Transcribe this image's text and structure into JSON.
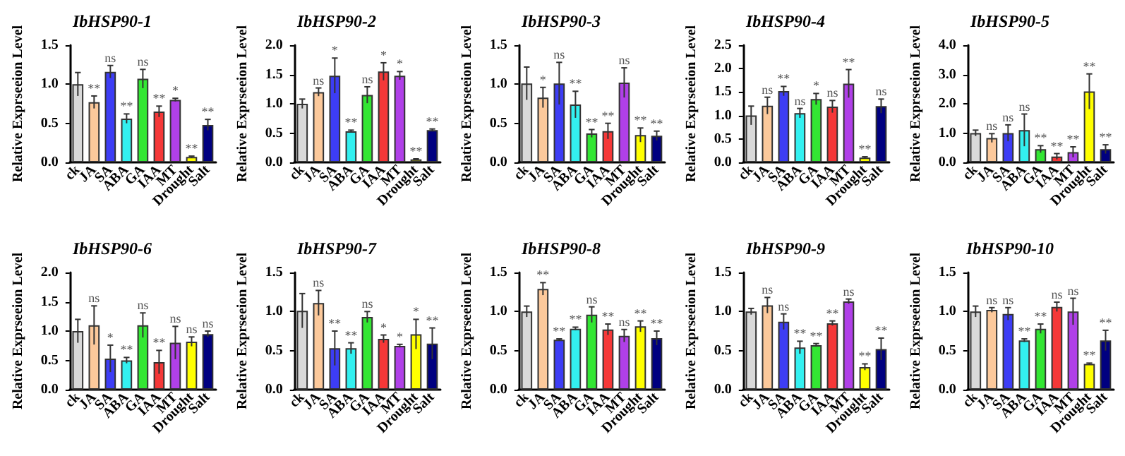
{
  "chart_data": [
    {
      "type": "bar",
      "title": "IbHSP90-1",
      "ylabel": "Relative Exprseeion Level",
      "categories": [
        "ck",
        "JA",
        "SA",
        "ABA",
        "GA",
        "IAA",
        "MT",
        "Drought",
        "Salt"
      ],
      "colors": [
        "#d9d9d9",
        "#fcc99b",
        "#3d3df5",
        "#33f0f0",
        "#33e633",
        "#f53838",
        "#b040e8",
        "#ffff00",
        "#000080"
      ],
      "values": [
        1.0,
        0.77,
        1.16,
        0.56,
        1.07,
        0.65,
        0.8,
        0.07,
        0.48
      ],
      "errors": [
        0.15,
        0.08,
        0.08,
        0.06,
        0.12,
        0.07,
        0.02,
        0.01,
        0.07
      ],
      "value_labels": [
        null,
        "**",
        "ns",
        "**",
        "ns",
        "**",
        "*",
        "**",
        "**"
      ],
      "ylim": [
        0,
        1.5
      ],
      "yticks": [
        {
          "value": 0,
          "label": "0.0"
        },
        0.5,
        {
          "value": 1,
          "label": "1.0"
        },
        1.5
      ]
    },
    {
      "type": "bar",
      "title": "IbHSP90-2",
      "ylabel": "Relative Exprseeion Level",
      "categories": [
        "ck",
        "JA",
        "SA",
        "ABA",
        "GA",
        "IAA",
        "MT",
        "Drought",
        "Salt"
      ],
      "colors": [
        "#d9d9d9",
        "#fcc99b",
        "#3d3df5",
        "#33f0f0",
        "#33e633",
        "#f53838",
        "#b040e8",
        "#ffff00",
        "#000080"
      ],
      "values": [
        1.0,
        1.2,
        1.48,
        0.53,
        1.15,
        1.55,
        1.48,
        0.05,
        0.55
      ],
      "errors": [
        0.08,
        0.07,
        0.3,
        0.02,
        0.14,
        0.15,
        0.07,
        0.01,
        0.02
      ],
      "value_labels": [
        null,
        "ns",
        "*",
        "**",
        "ns",
        "*",
        "*",
        "**",
        "**"
      ],
      "ylim": [
        0,
        2
      ],
      "yticks": [
        {
          "value": 0,
          "label": "0.0"
        },
        0.5,
        {
          "value": 1,
          "label": "1.0"
        },
        1.5,
        {
          "value": 2,
          "label": "2.0"
        }
      ]
    },
    {
      "type": "bar",
      "title": "IbHSP90-3",
      "ylabel": "Relative Exprseeion Level",
      "categories": [
        "ck",
        "JA",
        "SA",
        "ABA",
        "GA",
        "IAA",
        "MT",
        "Drought",
        "Salt"
      ],
      "colors": [
        "#d9d9d9",
        "#fcc99b",
        "#3d3df5",
        "#33f0f0",
        "#33e633",
        "#f53838",
        "#b040e8",
        "#ffff00",
        "#000080"
      ],
      "values": [
        1.01,
        0.83,
        1.01,
        0.74,
        0.37,
        0.4,
        1.02,
        0.35,
        0.34
      ],
      "errors": [
        0.21,
        0.13,
        0.27,
        0.17,
        0.05,
        0.1,
        0.19,
        0.09,
        0.06
      ],
      "value_labels": [
        null,
        "*",
        "ns",
        "**",
        "**",
        "**",
        "ns",
        "**",
        "**"
      ],
      "ylim": [
        0,
        1.5
      ],
      "yticks": [
        {
          "value": 0,
          "label": "0.0"
        },
        0.5,
        {
          "value": 1,
          "label": "1.0"
        },
        1.5
      ]
    },
    {
      "type": "bar",
      "title": "IbHSP90-4",
      "ylabel": "Relative Exprseeion Level",
      "categories": [
        "ck",
        "JA",
        "SA",
        "ABA",
        "GA",
        "IAA",
        "MT",
        "Drought",
        "Salt"
      ],
      "colors": [
        "#d9d9d9",
        "#fcc99b",
        "#3d3df5",
        "#33f0f0",
        "#33e633",
        "#f53838",
        "#b040e8",
        "#ffff00",
        "#000080"
      ],
      "values": [
        1.0,
        1.21,
        1.52,
        1.05,
        1.35,
        1.19,
        1.68,
        0.1,
        1.2
      ],
      "errors": [
        0.2,
        0.18,
        0.1,
        0.1,
        0.12,
        0.13,
        0.3,
        0.02,
        0.15
      ],
      "value_labels": [
        null,
        "ns",
        "**",
        "ns",
        "*",
        "ns",
        "**",
        "**",
        "ns"
      ],
      "ylim": [
        0,
        2.5
      ],
      "yticks": [
        {
          "value": 0,
          "label": "0.0"
        },
        0.5,
        {
          "value": 1,
          "label": "1.0"
        },
        1.5,
        {
          "value": 2,
          "label": "2.0"
        },
        2.5
      ]
    },
    {
      "type": "bar",
      "title": "IbHSP90-5",
      "ylabel": "Relative Exprseeion Level",
      "categories": [
        "ck",
        "JA",
        "SA",
        "ABA",
        "GA",
        "IAA",
        "MT",
        "Drought",
        "Salt"
      ],
      "colors": [
        "#d9d9d9",
        "#fcc99b",
        "#3d3df5",
        "#33f0f0",
        "#33e633",
        "#f53838",
        "#b040e8",
        "#ffff00",
        "#000080"
      ],
      "values": [
        1.0,
        0.83,
        1.0,
        1.1,
        0.45,
        0.2,
        0.35,
        2.42,
        0.45
      ],
      "errors": [
        0.1,
        0.15,
        0.28,
        0.55,
        0.12,
        0.1,
        0.18,
        0.6,
        0.15
      ],
      "value_labels": [
        null,
        "ns",
        "ns",
        "ns",
        "**",
        "**",
        "**",
        "**",
        "**"
      ],
      "ylim": [
        0,
        4
      ],
      "yticks": [
        {
          "value": 0,
          "label": "0.0"
        },
        {
          "value": 1,
          "label": "1.0"
        },
        {
          "value": 2,
          "label": "2.0"
        },
        {
          "value": 3,
          "label": "3.0"
        },
        {
          "value": 4,
          "label": "4.0"
        }
      ]
    },
    {
      "type": "bar",
      "title": "IbHSP90-6",
      "ylabel": "Relative Exprseeion Level",
      "categories": [
        "ck",
        "JA",
        "SA",
        "ABA",
        "GA",
        "IAA",
        "MT",
        "Drought",
        "Salt"
      ],
      "colors": [
        "#d9d9d9",
        "#fcc99b",
        "#3d3df5",
        "#33f0f0",
        "#33e633",
        "#f53838",
        "#b040e8",
        "#ffff00",
        "#000080"
      ],
      "values": [
        1.0,
        1.1,
        0.53,
        0.5,
        1.1,
        0.47,
        0.8,
        0.82,
        0.95
      ],
      "errors": [
        0.2,
        0.33,
        0.23,
        0.05,
        0.21,
        0.2,
        0.28,
        0.08,
        0.05
      ],
      "value_labels": [
        null,
        "ns",
        "*",
        "**",
        "ns",
        "**",
        "ns",
        "ns",
        "ns"
      ],
      "ylim": [
        0,
        2
      ],
      "yticks": [
        {
          "value": 0,
          "label": "0.0"
        },
        0.5,
        {
          "value": 1,
          "label": "1.0"
        },
        1.5,
        {
          "value": 2,
          "label": "2.0"
        }
      ]
    },
    {
      "type": "bar",
      "title": "IbHSP90-7",
      "ylabel": "Relative Exprseeion Level",
      "categories": [
        "ck",
        "JA",
        "SA",
        "ABA",
        "GA",
        "IAA",
        "MT",
        "Drought",
        "Salt"
      ],
      "colors": [
        "#d9d9d9",
        "#fcc99b",
        "#3d3df5",
        "#33f0f0",
        "#33e633",
        "#f53838",
        "#b040e8",
        "#ffff00",
        "#000080"
      ],
      "values": [
        1.01,
        1.11,
        0.53,
        0.53,
        0.93,
        0.65,
        0.56,
        0.71,
        0.59
      ],
      "errors": [
        0.22,
        0.16,
        0.22,
        0.07,
        0.07,
        0.05,
        0.02,
        0.19,
        0.2
      ],
      "value_labels": [
        null,
        "ns",
        "**",
        "**",
        "ns",
        "*",
        "*",
        "*",
        "**"
      ],
      "ylim": [
        0,
        1.5
      ],
      "yticks": [
        {
          "value": 0,
          "label": "0.0"
        },
        0.5,
        {
          "value": 1,
          "label": "1.0"
        },
        1.5
      ]
    },
    {
      "type": "bar",
      "title": "IbHSP90-8",
      "ylabel": "Relative Exprseeion Level",
      "categories": [
        "ck",
        "JA",
        "SA",
        "ABA",
        "GA",
        "IAA",
        "MT",
        "Drought",
        "Salt"
      ],
      "colors": [
        "#d9d9d9",
        "#fcc99b",
        "#3d3df5",
        "#33f0f0",
        "#33e633",
        "#f53838",
        "#b040e8",
        "#ffff00",
        "#000080"
      ],
      "values": [
        1.0,
        1.29,
        0.64,
        0.78,
        0.96,
        0.77,
        0.69,
        0.81,
        0.66
      ],
      "errors": [
        0.07,
        0.08,
        0.01,
        0.02,
        0.1,
        0.07,
        0.08,
        0.07,
        0.09
      ],
      "value_labels": [
        null,
        "**",
        "**",
        "**",
        "ns",
        "**",
        "ns",
        "**",
        "**"
      ],
      "ylim": [
        0,
        1.5
      ],
      "yticks": [
        {
          "value": 0,
          "label": "0.0"
        },
        0.5,
        {
          "value": 1,
          "label": "1.0"
        },
        1.5
      ]
    },
    {
      "type": "bar",
      "title": "IbHSP90-9",
      "ylabel": "Relative Exprseeion Level",
      "categories": [
        "ck",
        "JA",
        "SA",
        "ABA",
        "GA",
        "IAA",
        "MT",
        "Drought",
        "Salt"
      ],
      "colors": [
        "#d9d9d9",
        "#fcc99b",
        "#3d3df5",
        "#33f0f0",
        "#33e633",
        "#f53838",
        "#b040e8",
        "#ffff00",
        "#000080"
      ],
      "values": [
        1.0,
        1.08,
        0.87,
        0.54,
        0.57,
        0.85,
        1.13,
        0.29,
        0.52
      ],
      "errors": [
        0.04,
        0.1,
        0.1,
        0.08,
        0.02,
        0.03,
        0.03,
        0.04,
        0.14
      ],
      "value_labels": [
        null,
        "ns",
        "ns",
        "**",
        "**",
        "**",
        "ns",
        "**",
        "**"
      ],
      "ylim": [
        0,
        1.5
      ],
      "yticks": [
        {
          "value": 0,
          "label": "0.0"
        },
        0.5,
        {
          "value": 1,
          "label": "1.0"
        },
        1.5
      ]
    },
    {
      "type": "bar",
      "title": "IbHSP90-10",
      "ylabel": "Relative Exprseeion Level",
      "categories": [
        "ck",
        "JA",
        "SA",
        "ABA",
        "GA",
        "IAA",
        "MT",
        "Drought",
        "Salt"
      ],
      "colors": [
        "#d9d9d9",
        "#fcc99b",
        "#3d3df5",
        "#33f0f0",
        "#33e633",
        "#f53838",
        "#b040e8",
        "#ffff00",
        "#000080"
      ],
      "values": [
        1.0,
        1.02,
        0.97,
        0.63,
        0.78,
        1.06,
        1.0,
        0.33,
        0.63
      ],
      "errors": [
        0.07,
        0.03,
        0.08,
        0.02,
        0.06,
        0.06,
        0.17,
        0.01,
        0.13
      ],
      "value_labels": [
        null,
        "ns",
        "ns",
        "**",
        "**",
        "ns",
        "ns",
        "**",
        "**"
      ],
      "ylim": [
        0,
        1.5
      ],
      "yticks": [
        {
          "value": 0,
          "label": "0.0"
        },
        0.5,
        {
          "value": 1,
          "label": "1.0"
        },
        1.5
      ]
    }
  ]
}
